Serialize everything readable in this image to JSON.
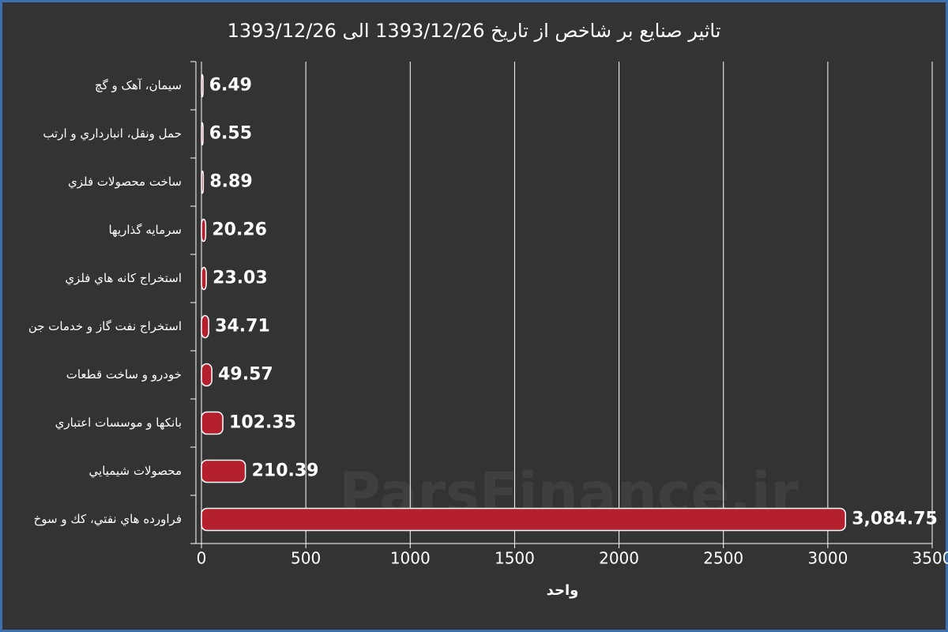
{
  "chart_data": {
    "type": "bar",
    "orientation": "horizontal",
    "title": "تاثیر صنایع بر شاخص از تاریخ 1393/12/26 الی 1393/12/26",
    "x_label": "واحد",
    "watermark": "ParsFinance.ir",
    "categories": [
      "سیمان، آهک و گچ",
      "حمل ونقل، انبارداري و ارتب",
      "ساخت محصولات فلزي",
      "سرمايه گذاريها",
      "استخراج كانه هاي فلزي",
      "استخراج نفت گاز و خدمات جن",
      "خودرو و ساخت قطعات",
      "بانكها و موسسات اعتباري",
      "محصولات شيميايي",
      "فراورده هاي نفتي، كك و سوخ"
    ],
    "values": [
      6.49,
      6.55,
      8.89,
      20.26,
      23.03,
      34.71,
      49.57,
      102.35,
      210.39,
      3084.75
    ],
    "value_labels": [
      "6.49",
      "6.55",
      "8.89",
      "20.26",
      "23.03",
      "34.71",
      "49.57",
      "102.35",
      "210.39",
      "3,084.75"
    ],
    "color": "#b5202e",
    "xlim": [
      0,
      3500
    ],
    "xticks": [
      0,
      500,
      1000,
      1500,
      2000,
      2500,
      3000,
      3500
    ],
    "grid": true
  }
}
